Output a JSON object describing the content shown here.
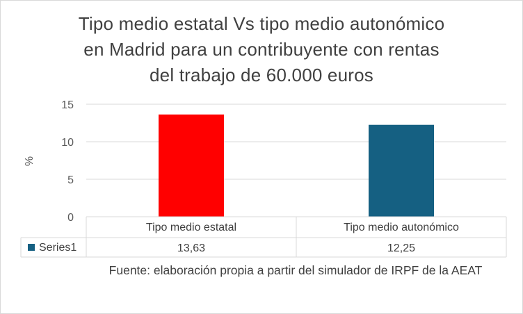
{
  "chart_data": {
    "type": "bar",
    "title": "Tipo medio estatal Vs tipo medio autonómico\nen Madrid para un contribuyente con rentas\ndel trabajo de 60.000  euros",
    "ylabel": "%",
    "xlabel": "",
    "categories": [
      "Tipo medio estatal",
      "Tipo medio autonómico"
    ],
    "series": [
      {
        "name": "Series1",
        "values": [
          13.63,
          12.25
        ]
      }
    ],
    "value_labels": [
      "13,63",
      "12,25"
    ],
    "bar_colors": [
      "#ff0000",
      "#156082"
    ],
    "legend_key_color": "#156082",
    "ylim": [
      0,
      15
    ],
    "yticks": [
      0,
      5,
      10,
      15
    ],
    "ytick_labels": [
      "0",
      "5",
      "10",
      "15"
    ],
    "grid": true,
    "data_table": true,
    "source_note": "Fuente: elaboración propia a partir del simulador de IRPF de la AEAT"
  }
}
